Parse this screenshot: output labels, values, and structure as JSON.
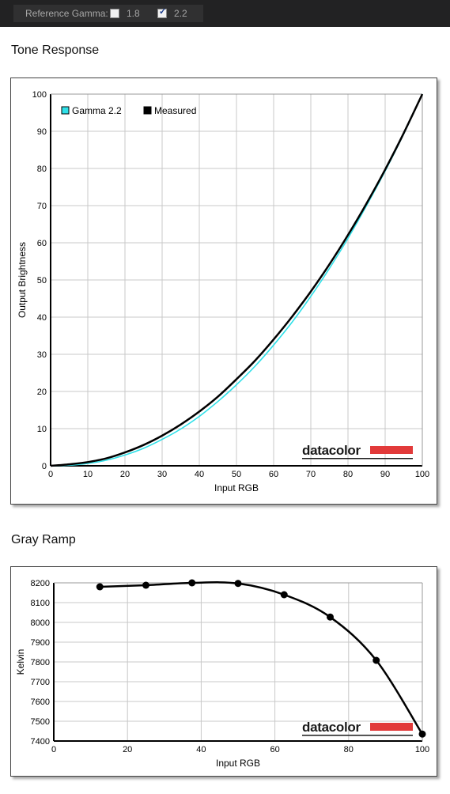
{
  "toolbar": {
    "reference_gamma_label": "Reference Gamma:",
    "options": [
      {
        "label": "1.8",
        "checked": false
      },
      {
        "label": "2.2",
        "checked": true
      }
    ]
  },
  "sections": {
    "tone_title": "Tone Response",
    "gray_title": "Gray Ramp"
  },
  "logo": {
    "text": "datacolor",
    "bar_color": "#e23a3a"
  },
  "chart_data": [
    {
      "type": "line",
      "xlabel": "Input RGB",
      "ylabel": "Output Brightness",
      "xlim": [
        0,
        100
      ],
      "ylim": [
        0,
        100
      ],
      "xticks": [
        0,
        10,
        20,
        30,
        40,
        50,
        60,
        70,
        80,
        90,
        100
      ],
      "yticks": [
        0,
        10,
        20,
        30,
        40,
        50,
        60,
        70,
        80,
        90,
        100
      ],
      "grid": true,
      "legend_position": "top-left",
      "series": [
        {
          "name": "Gamma 2.2",
          "color": "#2fe0e8",
          "x": [
            0,
            5,
            10,
            15,
            20,
            25,
            30,
            35,
            40,
            45,
            50,
            55,
            60,
            65,
            70,
            75,
            80,
            85,
            90,
            95,
            100
          ],
          "values": [
            0,
            0.14,
            0.63,
            1.5,
            2.9,
            4.7,
            7.1,
            9.9,
            13.3,
            17.3,
            21.8,
            26.8,
            32.5,
            38.7,
            45.6,
            53.1,
            61.2,
            70.0,
            79.3,
            89.3,
            100
          ]
        },
        {
          "name": "Measured",
          "color": "#000000",
          "x": [
            0,
            5,
            10,
            15,
            20,
            25,
            30,
            35,
            40,
            45,
            50,
            55,
            60,
            65,
            70,
            75,
            80,
            85,
            90,
            95,
            100
          ],
          "values": [
            0,
            0.4,
            1.0,
            2.0,
            3.6,
            5.6,
            8.1,
            11.1,
            14.6,
            18.6,
            23.3,
            28.3,
            34.0,
            40.2,
            46.9,
            54.2,
            62.1,
            70.6,
            79.7,
            89.5,
            100
          ]
        }
      ]
    },
    {
      "type": "line",
      "xlabel": "Input RGB",
      "ylabel": "Kelvin",
      "xlim": [
        0,
        100
      ],
      "ylim": [
        7400,
        8200
      ],
      "xticks": [
        0,
        20,
        40,
        60,
        80,
        100
      ],
      "yticks": [
        7400,
        7500,
        7600,
        7700,
        7800,
        7900,
        8000,
        8100,
        8200
      ],
      "grid": true,
      "series": [
        {
          "color": "#000000",
          "x": [
            12.5,
            25,
            37.5,
            50,
            62.5,
            75,
            87.5,
            100
          ],
          "values": [
            8180,
            8188,
            8200,
            8197,
            8140,
            8027,
            7808,
            7435
          ]
        }
      ]
    }
  ]
}
